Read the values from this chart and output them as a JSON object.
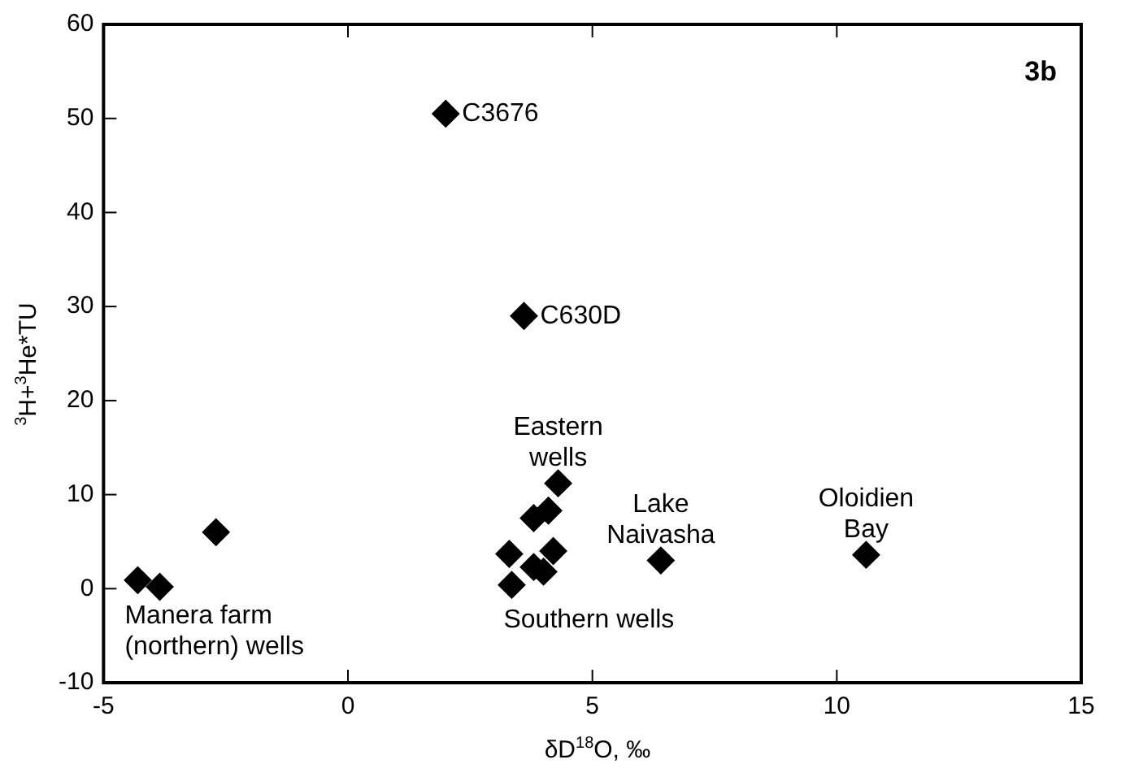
{
  "chart_data": {
    "type": "scatter",
    "xlabel": "δD$^{18}$O, ‰",
    "ylabel": "$^{3}$H+$^{3}$He*TU",
    "x": [
      -4.3,
      -3.85,
      -2.7,
      2.0,
      3.6,
      3.3,
      3.35,
      3.8,
      4.1,
      4.3,
      3.8,
      4.0,
      4.2,
      6.4,
      10.6
    ],
    "values": [
      0.9,
      0.2,
      6,
      50.5,
      29,
      3.7,
      0.4,
      7.5,
      8.3,
      11.2,
      2.3,
      1.8,
      4,
      3,
      3.6
    ],
    "color": "#000000",
    "marker": "diamond",
    "grid": false,
    "legend": false,
    "xlim": [
      -5,
      15
    ],
    "xticks": [
      -5,
      0,
      5,
      10,
      15
    ],
    "ylim": [
      -10,
      60
    ],
    "yticks": [
      -10,
      0,
      10,
      20,
      30,
      40,
      50,
      60
    ],
    "annotations": [
      "3b",
      {
        "text": "C3676",
        "x": 2.0,
        "y": 50.5
      },
      {
        "text": "C630D",
        "x": 3.6,
        "y": 29
      },
      {
        "text": "Eastern\nwells",
        "x": 4.3,
        "y": 11.2
      },
      {
        "text": "Lake\nNaivasha",
        "x": 6.4,
        "y": 3
      },
      {
        "text": "Oloidien\nBay",
        "x": 10.6,
        "y": 3.6
      },
      {
        "text": "Southern wells",
        "x": 3.35,
        "y": 0.4
      },
      {
        "text": "Manera farm\n(northern) wells",
        "x": -4.3,
        "y": 0.9
      }
    ]
  }
}
